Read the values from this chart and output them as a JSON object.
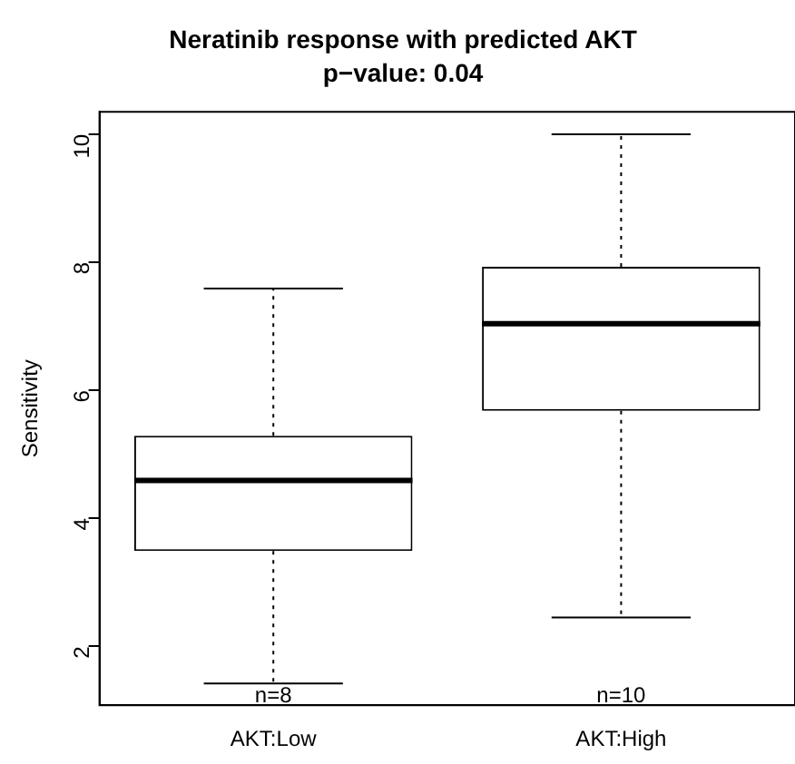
{
  "chart_data": {
    "type": "box",
    "title": "Neratinib response with predicted AKT",
    "subtitle": "p−value: 0.04",
    "ylabel": "Sensitivity",
    "categories": [
      "AKT:Low",
      "AKT:High"
    ],
    "boxes": [
      {
        "low": 1.42,
        "q1": 3.49,
        "median": 4.59,
        "q3": 5.29,
        "high": 7.59
      },
      {
        "low": 2.45,
        "q1": 5.68,
        "median": 7.04,
        "q3": 7.93,
        "high": 10
      }
    ],
    "ylim": [
      1.08,
      10.35
    ],
    "yticks": [
      2,
      4,
      6,
      8,
      10
    ],
    "grid": false,
    "legend": false,
    "annotations": [
      "n=8",
      "n=10"
    ]
  }
}
